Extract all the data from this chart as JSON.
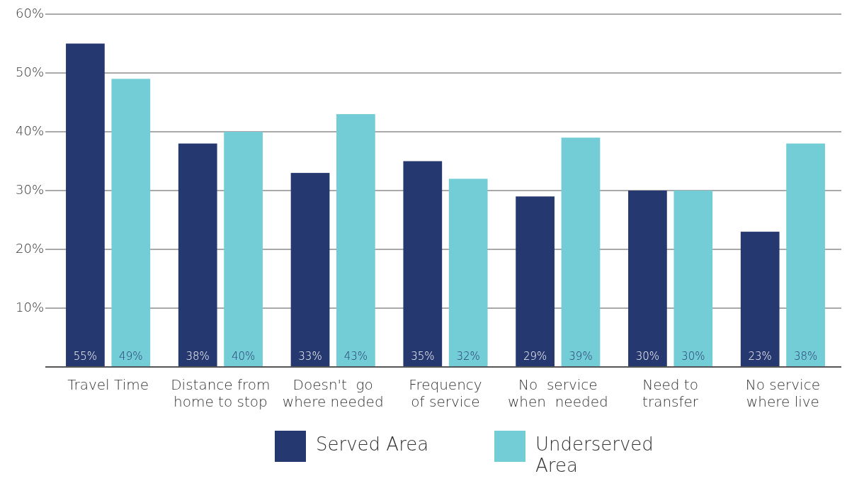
{
  "chart_data": {
    "type": "bar",
    "categories": [
      "Travel Time",
      "Distance from\nhome to stop",
      "Doesn't  go\nwhere needed",
      "Frequency\nof service",
      "No  service\nwhen  needed",
      "Need to\ntransfer",
      "No service\nwhere live"
    ],
    "series": [
      {
        "name": "Served Area",
        "color": "#263870",
        "values": [
          55,
          38,
          33,
          35,
          29,
          30,
          23
        ],
        "value_labels": [
          "55%",
          "38%",
          "33%",
          "35%",
          "29%",
          "30%",
          "23%"
        ]
      },
      {
        "name": "Underserved\nArea",
        "color": "#72cdd6",
        "values": [
          49,
          40,
          43,
          32,
          39,
          30,
          38
        ],
        "value_labels": [
          "49%",
          "40%",
          "43%",
          "32%",
          "39%",
          "30%",
          "38%"
        ]
      }
    ],
    "ylim": [
      0,
      60
    ],
    "yticks": [
      {
        "value": 10,
        "label": "10%"
      },
      {
        "value": 20,
        "label": "20%"
      },
      {
        "value": 30,
        "label": "30%"
      },
      {
        "value": 40,
        "label": "40%"
      },
      {
        "value": 50,
        "label": "50%"
      },
      {
        "value": 60,
        "label": "60%"
      }
    ],
    "grid": "y",
    "legend": "bottom"
  }
}
